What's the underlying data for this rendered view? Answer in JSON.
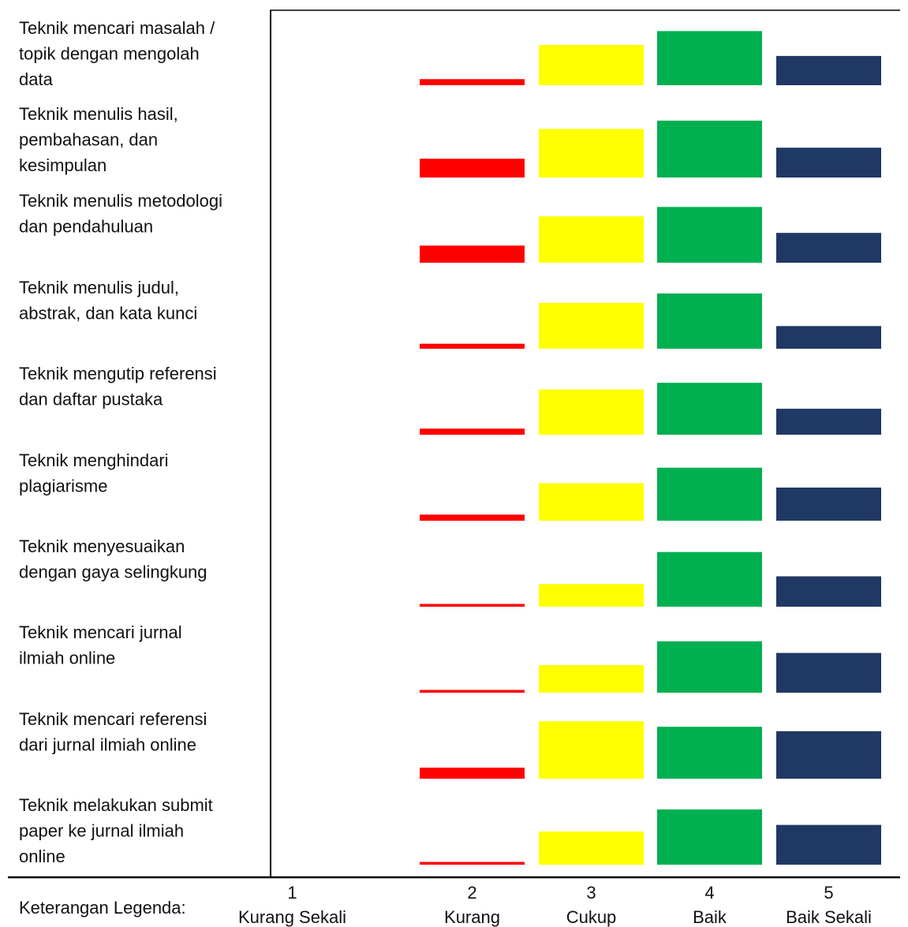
{
  "chart_data": {
    "type": "bar",
    "categories": [
      "Teknik mencari masalah / topik dengan mengolah data",
      "Teknik menulis hasil, pembahasan, dan kesimpulan",
      "Teknik menulis metodologi dan pendahuluan",
      "Teknik menulis judul, abstrak, dan kata kunci",
      "Teknik mengutip referensi dan daftar pustaka",
      "Teknik menghindari plagiarisme",
      "Teknik menyesuaikan dengan gaya selingkung",
      "Teknik mencari jurnal ilmiah online",
      "Teknik mencari referensi dari jurnal ilmiah online",
      "Teknik melakukan submit paper ke jurnal ilmiah online"
    ],
    "category_lines": [
      [
        "Teknik mencari masalah /",
        "topik dengan mengolah",
        "data"
      ],
      [
        "Teknik menulis hasil,",
        "pembahasan, dan",
        "kesimpulan"
      ],
      [
        "Teknik menulis metodologi",
        "dan pendahuluan"
      ],
      [
        "Teknik menulis judul,",
        "abstrak, dan kata kunci"
      ],
      [
        "Teknik mengutip referensi",
        "dan daftar pustaka"
      ],
      [
        "Teknik menghindari",
        "plagiarisme"
      ],
      [
        "Teknik menyesuaikan",
        "dengan gaya selingkung"
      ],
      [
        "Teknik mencari jurnal",
        "ilmiah online"
      ],
      [
        "Teknik mencari referensi",
        "dari jurnal ilmiah online"
      ],
      [
        "Teknik melakukan submit",
        "paper ke jurnal ilmiah",
        "online"
      ]
    ],
    "series": [
      {
        "name": "Kurang Sekali",
        "code": "1",
        "color": "#ffffff",
        "values": [
          0,
          0,
          0,
          0,
          0,
          0,
          0,
          0,
          0,
          0
        ]
      },
      {
        "name": "Kurang",
        "code": "2",
        "color": "#ff0000",
        "values": [
          1.1,
          3.4,
          3.1,
          0.9,
          1.1,
          1.1,
          0.5,
          0.5,
          2.0,
          0.5
        ]
      },
      {
        "name": "Cukup",
        "code": "3",
        "color": "#ffff00",
        "values": [
          7.3,
          8.8,
          8.4,
          8.3,
          8.2,
          6.8,
          4.1,
          5.0,
          10.4,
          6.0
        ]
      },
      {
        "name": "Baik",
        "code": "4",
        "color": "#00b050",
        "values": [
          9.8,
          10.3,
          10.1,
          10.0,
          9.4,
          9.6,
          9.9,
          9.3,
          9.4,
          10.0
        ]
      },
      {
        "name": "Baik Sekali",
        "code": "5",
        "color": "#203864",
        "values": [
          5.3,
          5.4,
          5.4,
          4.1,
          4.7,
          6.0,
          5.5,
          7.2,
          8.6,
          7.2
        ]
      }
    ],
    "legend_title": "Keterangan Legenda:",
    "legend_position": "bottom",
    "xlabel": "",
    "ylabel": "",
    "ylim": [
      0,
      10.4
    ]
  }
}
